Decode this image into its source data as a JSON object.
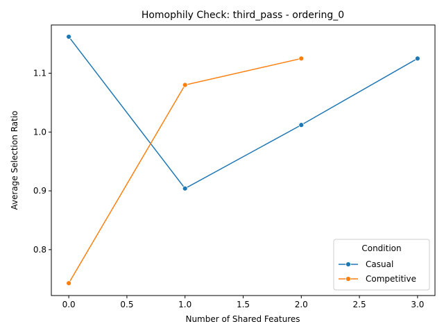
{
  "chart_data": {
    "type": "line",
    "title": "Homophily Check: third_pass - ordering_0",
    "xlabel": "Number of Shared Features",
    "ylabel": "Average Selection Ratio",
    "xlim": [
      -0.15,
      3.15
    ],
    "ylim": [
      0.722,
      1.182
    ],
    "xticks": [
      "0.0",
      "0.5",
      "1.0",
      "1.5",
      "2.0",
      "2.5",
      "3.0"
    ],
    "yticks": [
      "0.8",
      "0.9",
      "1.0",
      "1.1"
    ],
    "grid": false,
    "legend": {
      "title": "Condition",
      "placement": "lower-right"
    },
    "series": [
      {
        "name": "Casual",
        "color": "#1f77b4",
        "marker": "circle",
        "x": [
          0,
          1,
          2,
          3
        ],
        "y": [
          1.162,
          0.904,
          1.012,
          1.125
        ]
      },
      {
        "name": "Competitive",
        "color": "#ff7f0e",
        "marker": "circle",
        "x": [
          0,
          1,
          2
        ],
        "y": [
          0.743,
          1.08,
          1.125
        ]
      }
    ]
  }
}
